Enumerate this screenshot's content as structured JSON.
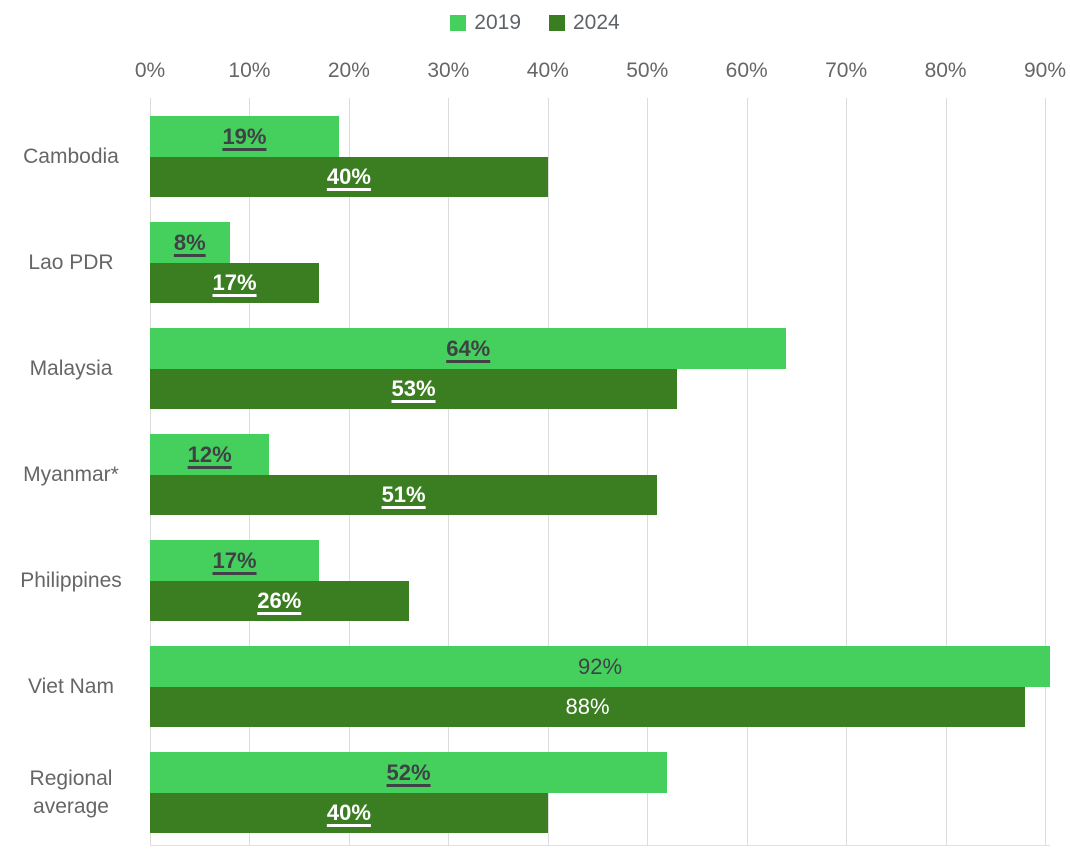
{
  "chart_data": {
    "type": "bar",
    "orientation": "horizontal",
    "categories": [
      "Cambodia",
      "Lao PDR",
      "Malaysia",
      "Myanmar*",
      "Philippines",
      "Viet Nam",
      "Regional average"
    ],
    "series": [
      {
        "name": "2019",
        "color": "#45d05e",
        "values": [
          19,
          8,
          64,
          12,
          17,
          92,
          52
        ],
        "labels": [
          "19%",
          "8%",
          "64%",
          "12%",
          "17%",
          "92%",
          "52%"
        ]
      },
      {
        "name": "2024",
        "color": "#3b7d21",
        "values": [
          40,
          17,
          53,
          51,
          26,
          88,
          40
        ],
        "labels": [
          "40%",
          "17%",
          "53%",
          "51%",
          "26%",
          "88%",
          "40%"
        ]
      }
    ],
    "value_label_underlined_bold": [
      true,
      true,
      true,
      true,
      true,
      false,
      true
    ],
    "x_axis": {
      "position": "top",
      "min": 0,
      "max": 90,
      "tick_step": 10,
      "ticks": [
        "0%",
        "10%",
        "20%",
        "30%",
        "40%",
        "50%",
        "60%",
        "70%",
        "80%",
        "90%"
      ],
      "grid": true
    },
    "legend": {
      "position": "top",
      "entries": [
        "2019",
        "2024"
      ]
    },
    "colors": {
      "series_2019": "#45d05e",
      "series_2024": "#3b7d21",
      "gridline": "#dcdcdc",
      "axis_text": "#666666",
      "category_text": "#666666",
      "label_on_light_bar": "#3f4245",
      "label_on_dark_bar": "#ffffff",
      "background": "#ffffff"
    }
  }
}
